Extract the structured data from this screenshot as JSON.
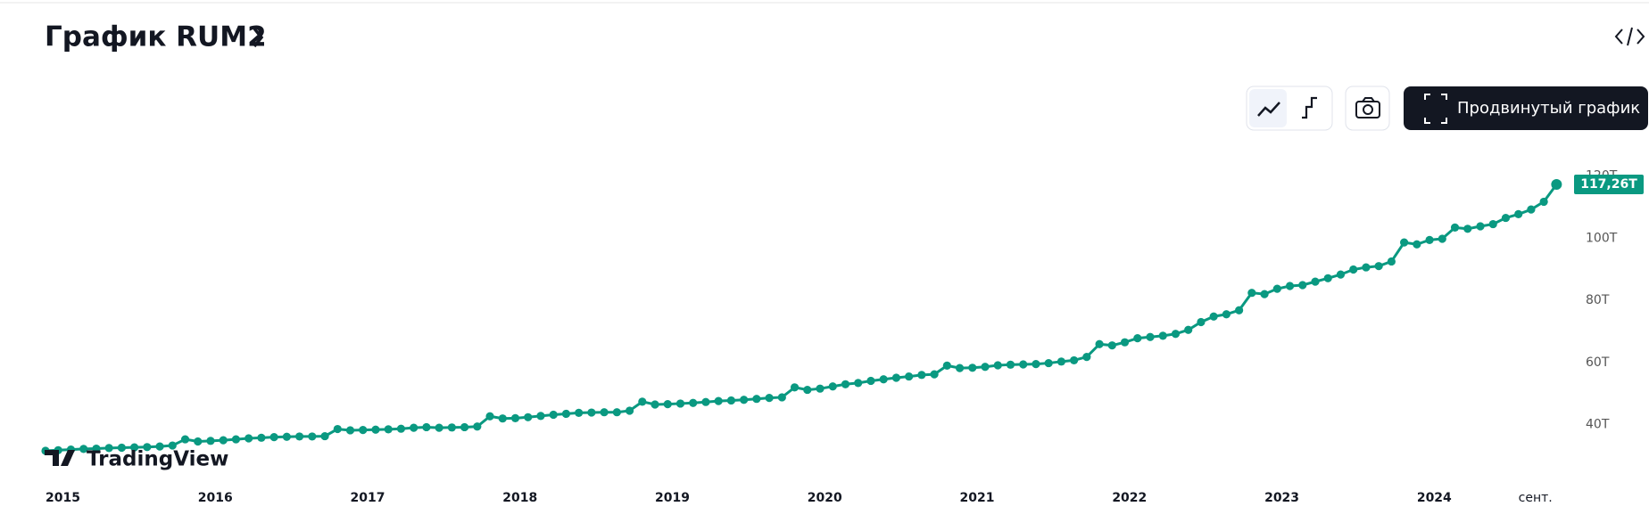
{
  "header": {
    "title": "График RUM2"
  },
  "toolbar": {
    "advanced_button": "Продвинутый график"
  },
  "watermark": "TradingView",
  "chart_data": {
    "type": "line",
    "color": "#0a9981",
    "categories": [
      "2015",
      null,
      null,
      null,
      null,
      null,
      null,
      null,
      null,
      null,
      null,
      null,
      "2016",
      null,
      null,
      null,
      null,
      null,
      null,
      null,
      null,
      null,
      null,
      null,
      "2017",
      null,
      null,
      null,
      null,
      null,
      null,
      null,
      null,
      null,
      null,
      null,
      "2018",
      null,
      null,
      null,
      null,
      null,
      null,
      null,
      null,
      null,
      null,
      null,
      "2019",
      null,
      null,
      null,
      null,
      null,
      null,
      null,
      null,
      null,
      null,
      null,
      "2020",
      null,
      null,
      null,
      null,
      null,
      null,
      null,
      null,
      null,
      null,
      null,
      "2021",
      null,
      null,
      null,
      null,
      null,
      null,
      null,
      null,
      null,
      null,
      null,
      "2022",
      null,
      null,
      null,
      null,
      null,
      null,
      null,
      null,
      null,
      null,
      null,
      "2023",
      null,
      null,
      null,
      null,
      null,
      null,
      null,
      null,
      null,
      null,
      null,
      "2024",
      null,
      null,
      null,
      null,
      null,
      null,
      null,
      "сент.",
      null,
      null,
      null
    ],
    "values": [
      31.6,
      31.8,
      32.0,
      32.2,
      32.3,
      32.5,
      32.6,
      32.7,
      32.8,
      33.0,
      33.3,
      35.3,
      34.6,
      34.8,
      35.0,
      35.3,
      35.6,
      35.8,
      36.0,
      36.1,
      36.2,
      36.2,
      36.3,
      38.6,
      38.2,
      38.3,
      38.4,
      38.5,
      38.7,
      39.0,
      39.2,
      39.0,
      39.1,
      39.2,
      39.4,
      42.7,
      42.0,
      42.1,
      42.4,
      42.8,
      43.2,
      43.5,
      43.8,
      43.9,
      44.0,
      44.0,
      44.5,
      47.4,
      46.5,
      46.6,
      46.8,
      47.0,
      47.3,
      47.6,
      47.8,
      48.0,
      48.3,
      48.6,
      48.8,
      52.0,
      51.2,
      51.6,
      52.3,
      53.0,
      53.4,
      54.1,
      54.6,
      55.1,
      55.5,
      56.0,
      56.2,
      59.0,
      58.2,
      58.3,
      58.6,
      59.1,
      59.3,
      59.4,
      59.5,
      59.8,
      60.3,
      60.7,
      61.8,
      65.9,
      65.5,
      66.5,
      67.8,
      68.2,
      68.6,
      69.2,
      70.5,
      73.0,
      74.8,
      75.5,
      76.8,
      82.4,
      82.0,
      83.7,
      84.6,
      84.9,
      86.0,
      87.1,
      88.3,
      89.9,
      90.6,
      91.0,
      92.5,
      98.6,
      98.0,
      99.4,
      99.8,
      103.4,
      103.0,
      103.8,
      104.5,
      106.5,
      107.7,
      109.2,
      111.7,
      117.26
    ],
    "value_labels": [
      null,
      null,
      null,
      null,
      null,
      null,
      null,
      null,
      null,
      null,
      null,
      null,
      null,
      null,
      null,
      null,
      null,
      null,
      null,
      null,
      null,
      null,
      null,
      null,
      null,
      null,
      null,
      null,
      null,
      null,
      null,
      null,
      null,
      null,
      null,
      null,
      null,
      null,
      null,
      null,
      null,
      null,
      null,
      null,
      null,
      null,
      null,
      null,
      null,
      null,
      null,
      null,
      null,
      null,
      null,
      null,
      null,
      null,
      null,
      null,
      null,
      null,
      null,
      null,
      null,
      null,
      null,
      null,
      null,
      null,
      null,
      null,
      null,
      null,
      null,
      null,
      null,
      null,
      null,
      null,
      null,
      null,
      null,
      null,
      null,
      null,
      null,
      null,
      null,
      null,
      null,
      null,
      null,
      null,
      null,
      null,
      null,
      null,
      null,
      null,
      null,
      null,
      null,
      null,
      null,
      null,
      null,
      null,
      null,
      null,
      null,
      null,
      null,
      null,
      null,
      null,
      null,
      null,
      null,
      "117,26T"
    ],
    "ylim": [
      23,
      123
    ],
    "yticks": [
      {
        "value": 40,
        "label": "40T"
      },
      {
        "value": 60,
        "label": "60T"
      },
      {
        "value": 80,
        "label": "80T"
      },
      {
        "value": 100,
        "label": "100T"
      },
      {
        "value": 120,
        "label": "120T"
      }
    ],
    "grid": false
  }
}
